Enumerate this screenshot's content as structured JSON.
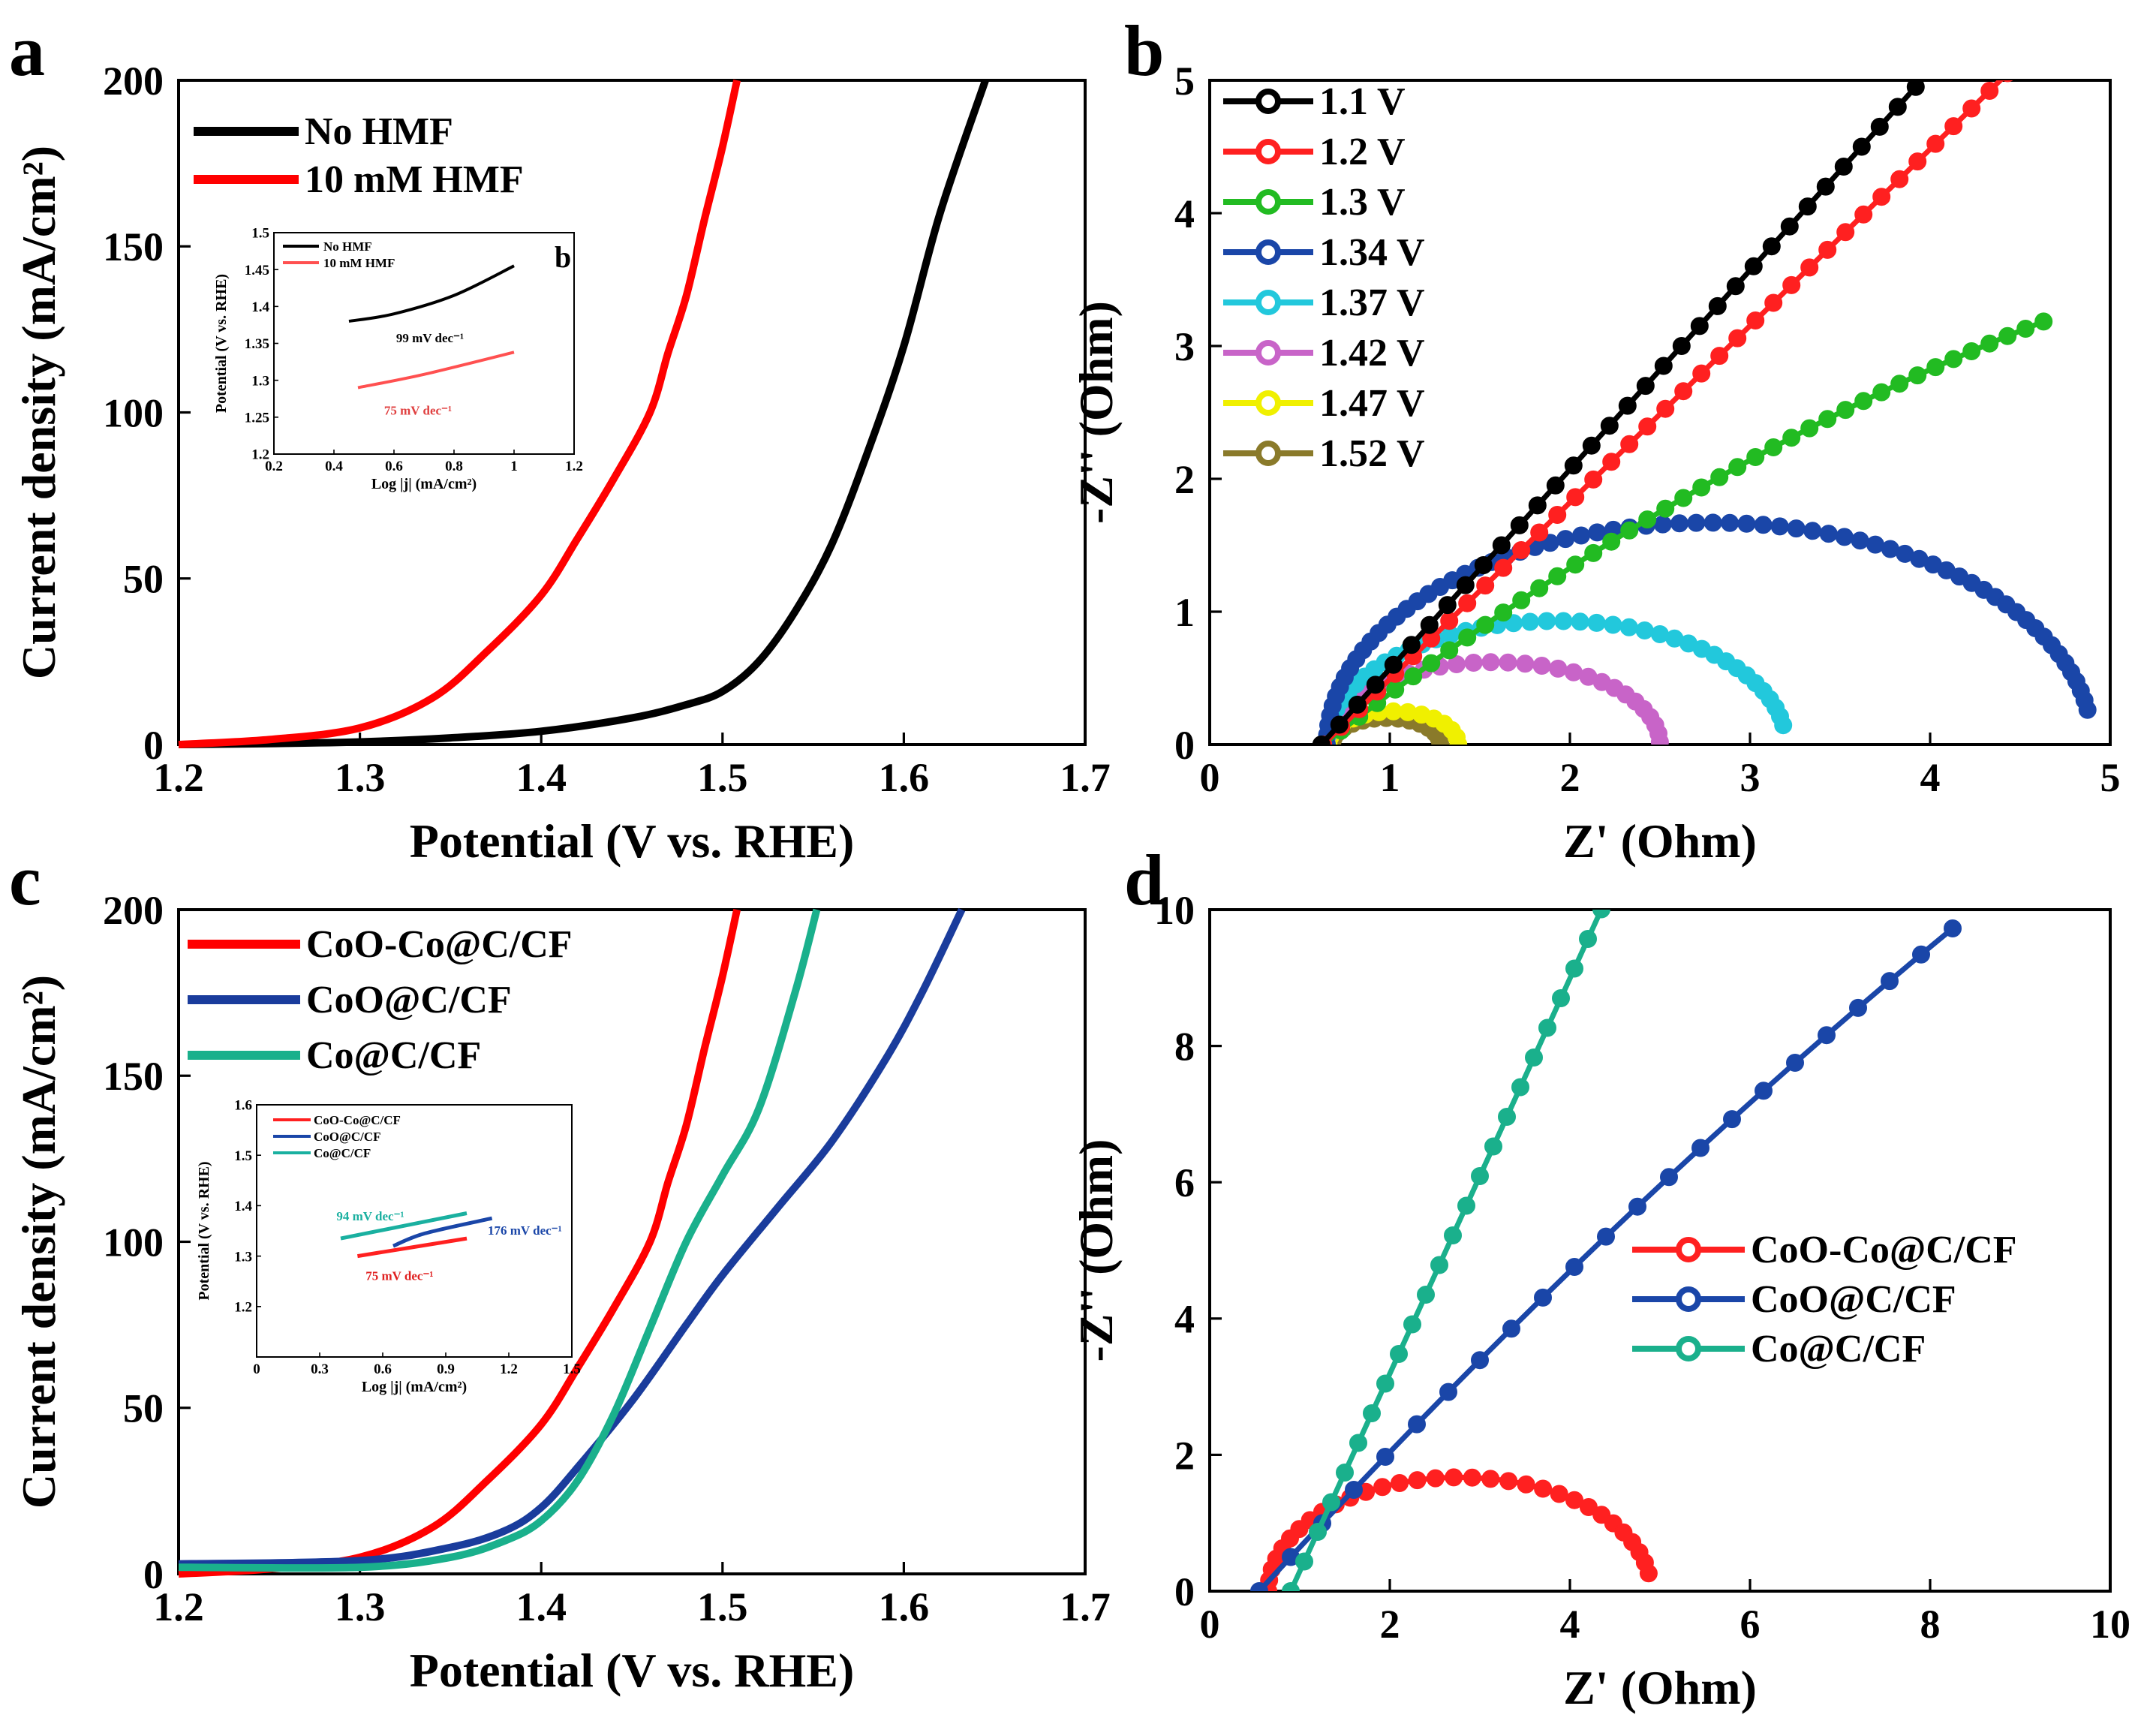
{
  "chart_data": [
    {
      "panel": "a",
      "type": "line",
      "title": "",
      "xlabel": "Potential (V vs. RHE)",
      "ylabel": "Current density (mA/cm²)",
      "xlim": [
        1.2,
        1.7
      ],
      "ylim": [
        0,
        200
      ],
      "xticks": [
        1.2,
        1.3,
        1.4,
        1.5,
        1.6,
        1.7
      ],
      "yticks": [
        0,
        50,
        100,
        150,
        200
      ],
      "legend_position": "top-left",
      "series": [
        {
          "name": "No HMF",
          "color": "#000000",
          "x": [
            1.2,
            1.25,
            1.3,
            1.35,
            1.4,
            1.45,
            1.48,
            1.5,
            1.52,
            1.54,
            1.56,
            1.58,
            1.6,
            1.62,
            1.645
          ],
          "y": [
            0,
            0.3,
            0.8,
            2,
            4,
            8,
            12,
            16,
            25,
            40,
            60,
            88,
            120,
            160,
            200
          ]
        },
        {
          "name": "10 mM HMF",
          "color": "#ff0000",
          "x": [
            1.2,
            1.25,
            1.3,
            1.34,
            1.37,
            1.4,
            1.42,
            1.44,
            1.46,
            1.47,
            1.48,
            1.49,
            1.5,
            1.508
          ],
          "y": [
            0,
            1.5,
            5,
            14,
            28,
            45,
            62,
            80,
            100,
            118,
            135,
            158,
            180,
            200
          ]
        }
      ],
      "inset": {
        "panel_label": "b",
        "xlabel": "Log |j| (mA/cm²)",
        "ylabel": "Potential (V vs. RHE)",
        "xlim": [
          0.2,
          1.2
        ],
        "ylim": [
          1.2,
          1.5
        ],
        "xticks": [
          0.2,
          0.4,
          0.6,
          0.8,
          1.0,
          1.2
        ],
        "yticks": [
          1.2,
          1.25,
          1.3,
          1.35,
          1.4,
          1.45,
          1.5
        ],
        "series": [
          {
            "name": "No HMF",
            "color": "#000000",
            "x": [
              0.45,
              0.6,
              0.8,
              1.0
            ],
            "y": [
              1.38,
              1.39,
              1.415,
              1.455
            ],
            "annotation": "99 mV dec⁻¹"
          },
          {
            "name": "10 mM HMF",
            "color": "#ff5050",
            "x": [
              0.48,
              0.7,
              1.0
            ],
            "y": [
              1.29,
              1.308,
              1.338
            ],
            "annotation": "75 mV dec⁻¹"
          }
        ]
      }
    },
    {
      "panel": "b",
      "type": "scatter",
      "title": "",
      "xlabel": "Z' (Ohm)",
      "ylabel": "-Z'' (Ohm)",
      "xlim": [
        0,
        5
      ],
      "ylim": [
        0,
        5
      ],
      "xticks": [
        0,
        1,
        2,
        3,
        4,
        5
      ],
      "yticks": [
        0,
        1,
        2,
        3,
        4,
        5
      ],
      "legend_position": "top-left",
      "series": [
        {
          "name": "1.1 V",
          "color": "#000000",
          "kind": "line",
          "x0": 0.62,
          "x1": 5.0,
          "slope": 1.5
        },
        {
          "name": "1.2 V",
          "color": "#ff2020",
          "kind": "line",
          "x0": 0.63,
          "x1": 5.0,
          "slope": 1.33
        },
        {
          "name": "1.3 V",
          "color": "#22bb22",
          "kind": "curve",
          "x0": 0.63,
          "xend": 4.7,
          "a": 1.06,
          "b": 0.066
        },
        {
          "name": "1.34 V",
          "color": "#1a46a8",
          "kind": "arc",
          "r0": 0.65,
          "r1": 4.9,
          "height": 1.67,
          "end_angle": 0.95
        },
        {
          "name": "1.37 V",
          "color": "#22c8dc",
          "kind": "arc",
          "r0": 0.65,
          "r1": 3.2,
          "height": 0.93,
          "end_angle": 0.95
        },
        {
          "name": "1.42 V",
          "color": "#c864c8",
          "kind": "arc",
          "r0": 0.65,
          "r1": 2.5,
          "height": 0.62,
          "end_angle": 0.99
        },
        {
          "name": "1.47 V",
          "color": "#f0f000",
          "kind": "arc",
          "r0": 0.66,
          "r1": 1.38,
          "height": 0.25,
          "end_angle": 1.0
        },
        {
          "name": "1.52 V",
          "color": "#8a7a2a",
          "kind": "arc",
          "r0": 0.68,
          "r1": 1.28,
          "height": 0.2,
          "end_angle": 1.0
        }
      ]
    },
    {
      "panel": "c",
      "type": "line",
      "title": "",
      "xlabel": "Potential (V vs. RHE)",
      "ylabel": "Current density (mA/cm²)",
      "xlim": [
        1.2,
        1.7
      ],
      "ylim": [
        0,
        200
      ],
      "xticks": [
        1.2,
        1.3,
        1.4,
        1.5,
        1.6,
        1.7
      ],
      "yticks": [
        0,
        50,
        100,
        150,
        200
      ],
      "legend_position": "top-left",
      "series": [
        {
          "name": "CoO-Co@C/CF",
          "color": "#ff0000",
          "x": [
            1.2,
            1.25,
            1.3,
            1.34,
            1.37,
            1.4,
            1.42,
            1.44,
            1.46,
            1.47,
            1.48,
            1.49,
            1.5,
            1.508
          ],
          "y": [
            0,
            1.5,
            5,
            14,
            28,
            45,
            62,
            80,
            100,
            118,
            135,
            158,
            180,
            200
          ]
        },
        {
          "name": "CoO@C/CF",
          "color": "#1a3c9c",
          "x": [
            1.2,
            1.3,
            1.35,
            1.38,
            1.4,
            1.42,
            1.45,
            1.48,
            1.5,
            1.53,
            1.56,
            1.59,
            1.61,
            1.632
          ],
          "y": [
            3,
            4,
            8,
            13,
            20,
            32,
            52,
            75,
            90,
            110,
            130,
            155,
            175,
            200
          ]
        },
        {
          "name": "Co@C/CF",
          "color": "#1ab08c",
          "x": [
            1.2,
            1.3,
            1.35,
            1.38,
            1.4,
            1.42,
            1.44,
            1.46,
            1.48,
            1.5,
            1.52,
            1.54,
            1.552
          ],
          "y": [
            2,
            2,
            5,
            10,
            16,
            28,
            48,
            74,
            100,
            120,
            140,
            175,
            200
          ]
        }
      ],
      "inset": {
        "xlabel": "Log |j| (mA/cm²)",
        "ylabel": "Potential (V vs. RHE)",
        "xlim": [
          0.0,
          1.5
        ],
        "ylim": [
          1.1,
          1.6
        ],
        "xticks": [
          0.0,
          0.3,
          0.6,
          0.9,
          1.2,
          1.5
        ],
        "yticks": [
          1.2,
          1.3,
          1.4,
          1.5,
          1.6
        ],
        "series": [
          {
            "name": "CoO-Co@C/CF",
            "color": "#ff2020",
            "x": [
              0.48,
              1.0
            ],
            "y": [
              1.3,
              1.335
            ],
            "annotation": "75 mV dec⁻¹"
          },
          {
            "name": "CoO@C/CF",
            "color": "#1a46a8",
            "x": [
              0.65,
              0.8,
              1.12
            ],
            "y": [
              1.32,
              1.345,
              1.375
            ],
            "annotation": "176 mV dec⁻¹"
          },
          {
            "name": "Co@C/CF",
            "color": "#1ab0a0",
            "x": [
              0.4,
              1.0
            ],
            "y": [
              1.335,
              1.385
            ],
            "annotation": "94 mV dec⁻¹"
          }
        ]
      }
    },
    {
      "panel": "d",
      "type": "scatter",
      "title": "",
      "xlabel": "Z' (Ohm)",
      "ylabel": "-Z'' (Ohm)",
      "xlim": [
        0,
        10
      ],
      "ylim": [
        0,
        10
      ],
      "xticks": [
        0,
        2,
        4,
        6,
        8,
        10
      ],
      "yticks": [
        0,
        2,
        4,
        6,
        8,
        10
      ],
      "legend_position": "center-right",
      "series": [
        {
          "name": "CoO-Co@C/CF",
          "color": "#ff2020",
          "kind": "arc",
          "r0": 0.65,
          "r1": 4.9,
          "height": 1.67,
          "end_angle": 0.95
        },
        {
          "name": "CoO@C/CF",
          "color": "#1a46a8",
          "kind": "curve",
          "x0": 0.55,
          "xend": 8.4,
          "a": 1.44,
          "b": 0.023
        },
        {
          "name": "Co@C/CF",
          "color": "#1ab08c",
          "kind": "line",
          "x0": 0.9,
          "x1": 4.35,
          "slope": 2.9
        }
      ]
    }
  ]
}
